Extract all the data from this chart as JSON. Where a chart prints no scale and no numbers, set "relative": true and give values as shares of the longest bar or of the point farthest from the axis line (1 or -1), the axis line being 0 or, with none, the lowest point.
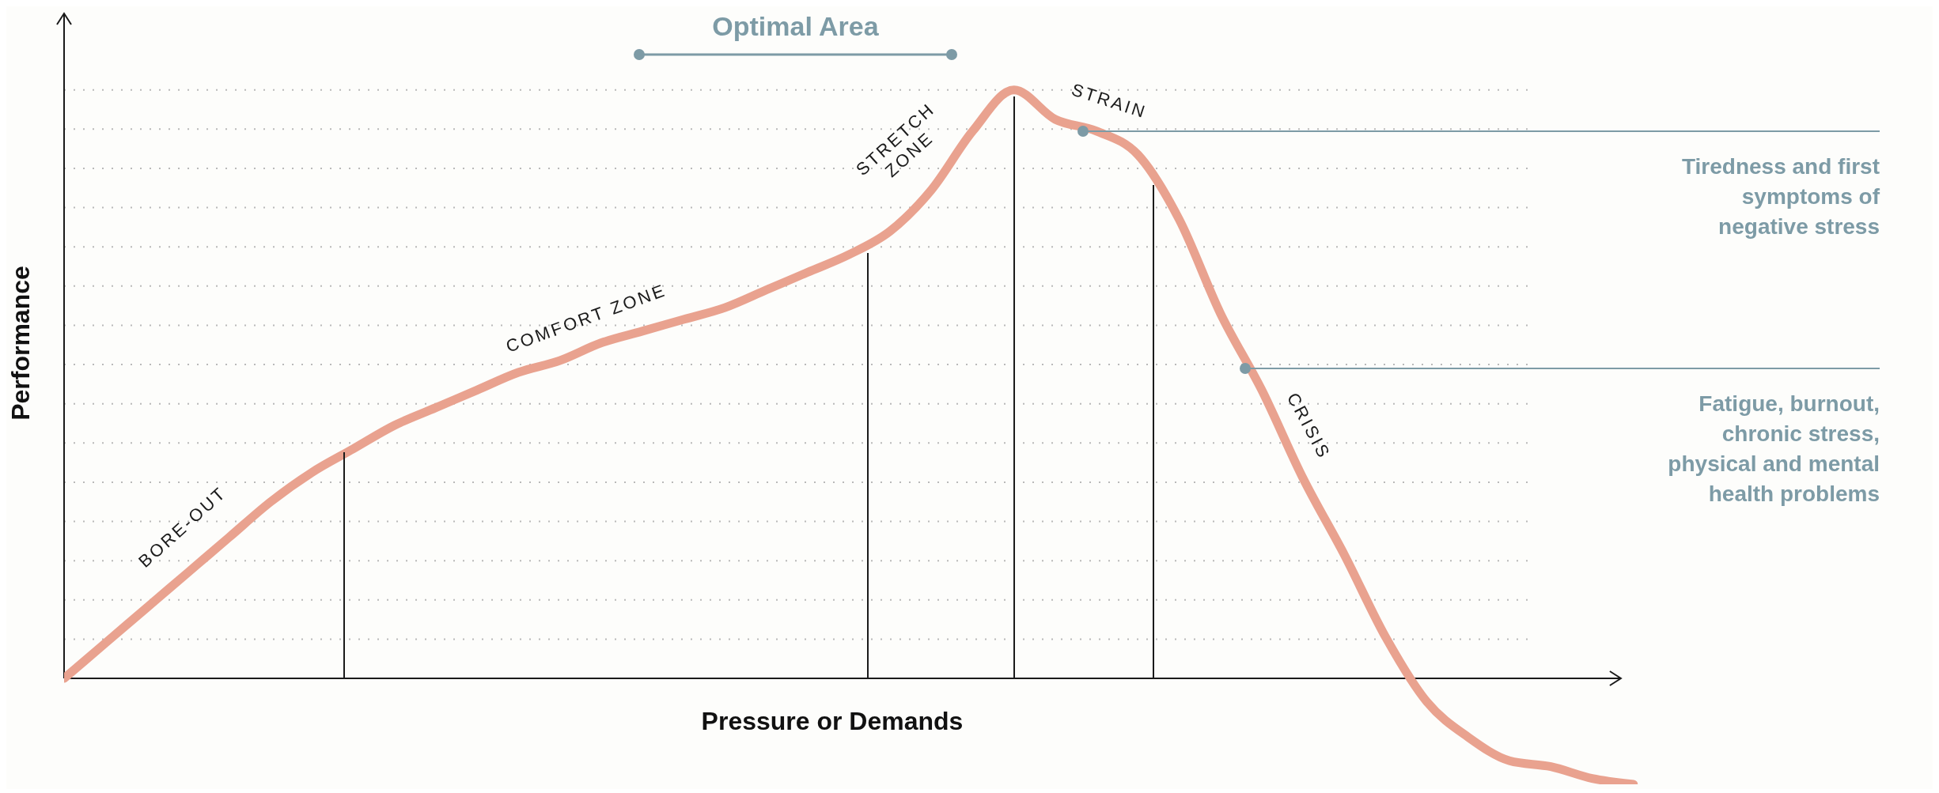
{
  "chart_data": {
    "type": "line",
    "relative": true,
    "xlabel": "Pressure or Demands",
    "ylabel": "Performance",
    "categories": [
      null,
      null,
      null,
      null,
      null,
      null,
      null,
      null,
      null,
      null,
      null,
      null,
      null,
      null,
      null,
      null,
      null,
      null,
      null,
      null,
      null,
      null,
      null,
      null,
      null,
      null,
      null,
      null,
      null,
      null,
      null,
      null,
      null,
      null,
      null,
      null,
      null,
      null,
      null
    ],
    "series": [
      {
        "color": "#e9a28f",
        "values": [
          0,
          0.06,
          0.12,
          0.18,
          0.24,
          0.3,
          0.35,
          0.39,
          0.43,
          0.46,
          0.49,
          0.52,
          0.54,
          0.57,
          0.59,
          0.61,
          0.63,
          0.66,
          0.69,
          0.72,
          0.76,
          0.83,
          0.93,
          1.0,
          0.95,
          0.93,
          0.89,
          0.78,
          0.62,
          0.49,
          0.34,
          0.21,
          0.07,
          -0.04,
          -0.1,
          -0.14,
          -0.15,
          -0.17,
          -0.18
        ]
      }
    ],
    "grid": true,
    "annotations": [
      "Optimal Area",
      "BORE-OUT",
      "COMFORT ZONE",
      "STRETCH ZONE",
      "STRAIN",
      "CRISIS",
      "Tiredness and first symptoms of negative stress",
      "Fatigue, burnout, chronic stress, physical and mental health problems"
    ]
  }
}
